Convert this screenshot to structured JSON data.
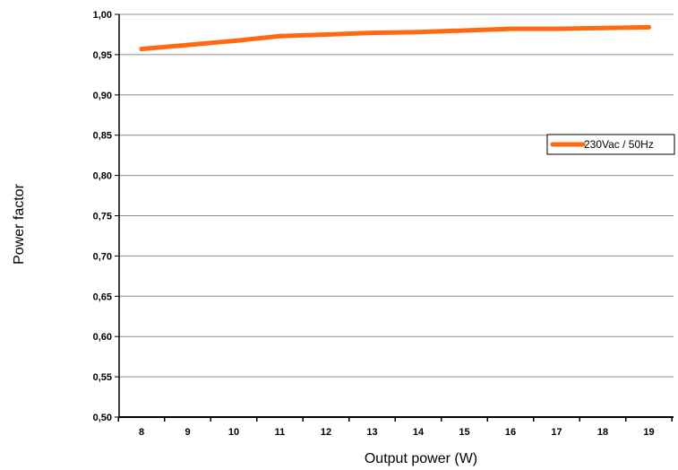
{
  "chart_data": {
    "type": "line",
    "title": "",
    "xlabel": "Output power (W)",
    "ylabel": "Power factor",
    "x": [
      8,
      9,
      10,
      11,
      12,
      13,
      14,
      15,
      16,
      17,
      18,
      19
    ],
    "x_tick_labels": [
      "8",
      "9",
      "10",
      "11",
      "12",
      "13",
      "14",
      "15",
      "16",
      "17",
      "18",
      "19"
    ],
    "y_tick_labels": [
      "0,50",
      "0,55",
      "0,60",
      "0,65",
      "0,70",
      "0,75",
      "0,80",
      "0,85",
      "0,90",
      "0,95",
      "1,00"
    ],
    "ylim": [
      0.5,
      1.0
    ],
    "grid": true,
    "legend_position": "right",
    "series": [
      {
        "name": "230Vac / 50Hz",
        "color": "#ff6a10",
        "values": [
          0.957,
          0.962,
          0.967,
          0.973,
          0.975,
          0.977,
          0.978,
          0.98,
          0.982,
          0.982,
          0.983,
          0.984
        ]
      }
    ]
  }
}
